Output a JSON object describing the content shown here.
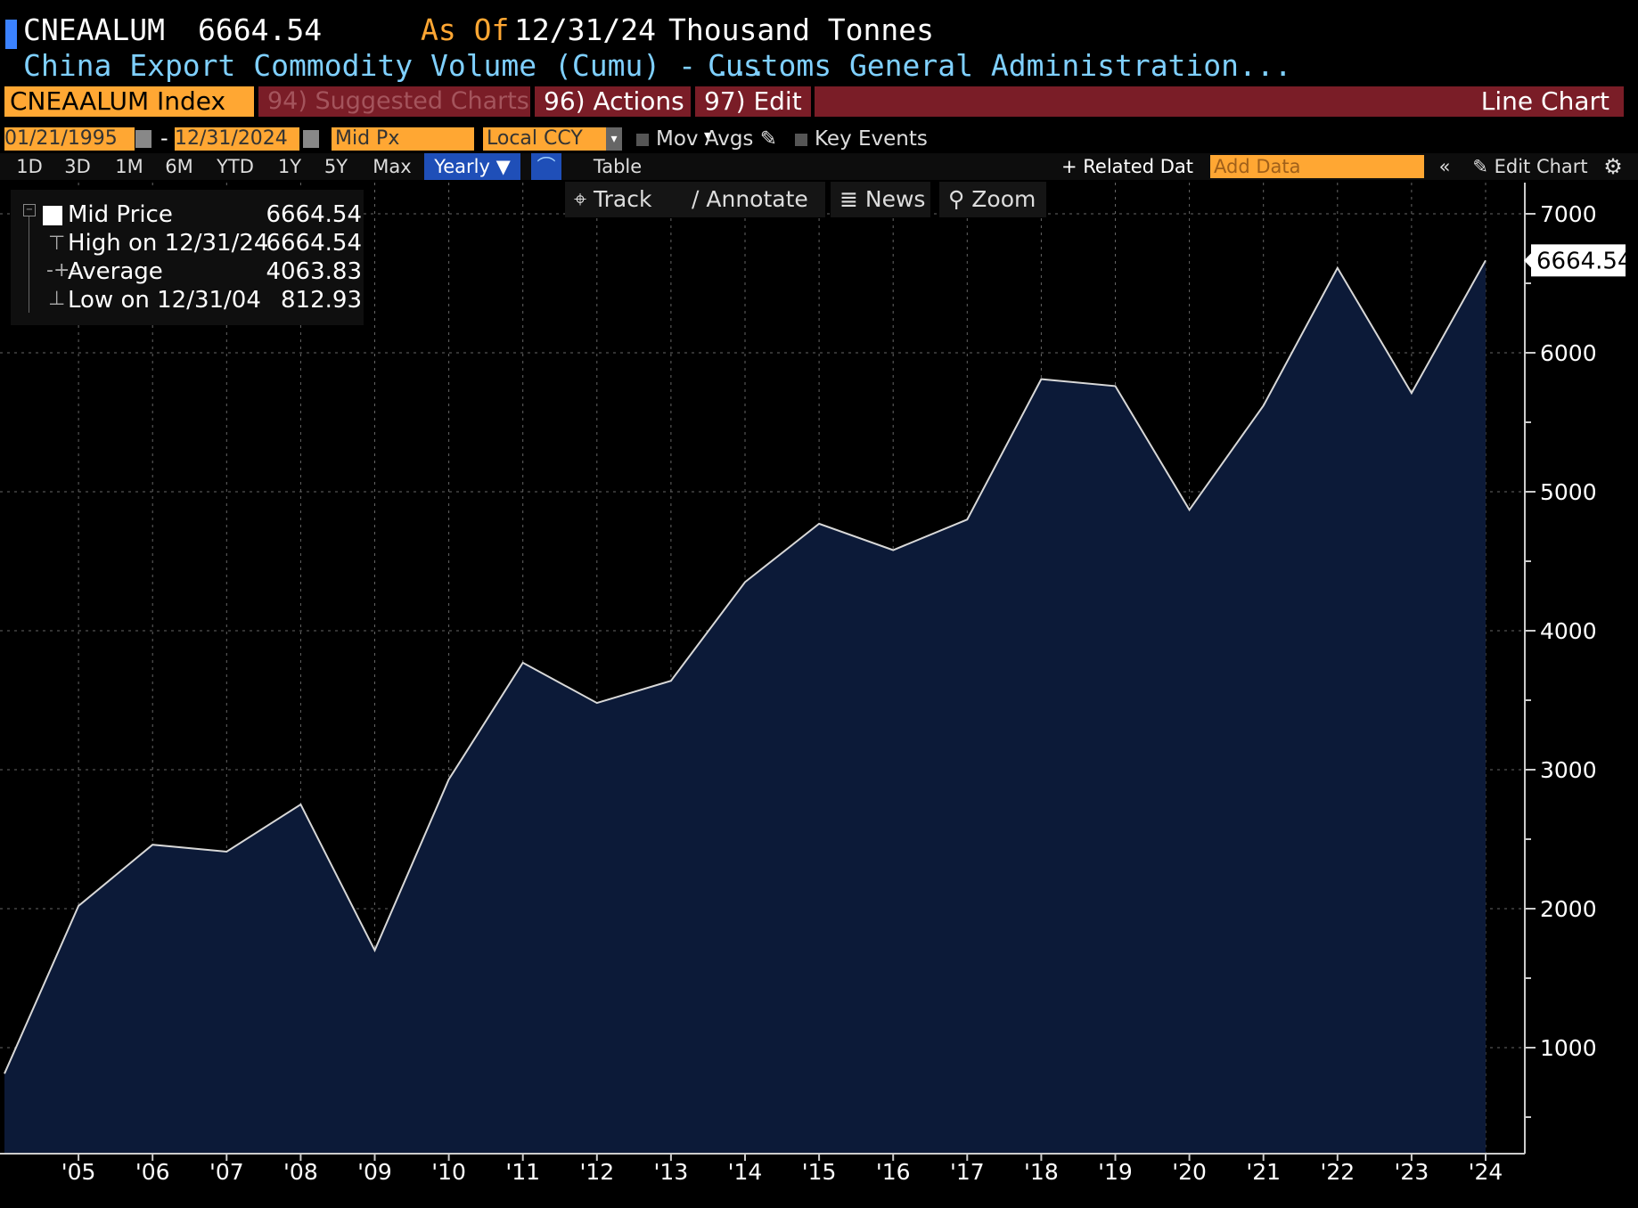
{
  "header": {
    "ticker": "CNEAALUM",
    "last_value": "6664.54",
    "as_of_label": "As Of",
    "as_of_date": "12/31/24",
    "units": "Thousand Tonnes",
    "description": "China Export Commodity Volume (Cumu) - ...",
    "source": "Customs General Administration..."
  },
  "toolbar": {
    "security": "CNEAALUM Index",
    "suggested": "94) Suggested Charts",
    "actions": "96) Actions",
    "edit": "97) Edit",
    "chart_type": "Line Chart"
  },
  "controls": {
    "start_date": "01/21/1995",
    "end_date": "12/31/2024",
    "field": "Mid Px",
    "currency": "Local CCY",
    "mov_avgs": "Mov Avgs",
    "key_events": "Key Events"
  },
  "ranges": [
    "1D",
    "3D",
    "1M",
    "6M",
    "YTD",
    "1Y",
    "5Y",
    "Max"
  ],
  "period": "Yearly",
  "table_label": "Table",
  "related_label": "+ Related Dat",
  "add_data_placeholder": "Add Data",
  "edit_chart_label": "Edit Chart",
  "tools": [
    "Track",
    "Annotate",
    "News",
    "Zoom"
  ],
  "legend": [
    {
      "label": "Mid Price",
      "value": "6664.54"
    },
    {
      "label": "High on 12/31/24",
      "value": "6664.54"
    },
    {
      "label": "Average",
      "value": "4063.83"
    },
    {
      "label": "Low on 12/31/04",
      "value": "812.93"
    }
  ],
  "colors": {
    "area_fill": "#0c1a38",
    "line": "#d8d8d8",
    "accent_amber": "#ffa733",
    "accent_maroon": "#7a1d27",
    "selected_blue": "#1f4fb8"
  },
  "chart_data": {
    "type": "area",
    "x": [
      "'04",
      "'05",
      "'06",
      "'07",
      "'08",
      "'09",
      "'10",
      "'11",
      "'12",
      "'13",
      "'14",
      "'15",
      "'16",
      "'17",
      "'18",
      "'19",
      "'20",
      "'21",
      "'22",
      "'23",
      "'24"
    ],
    "values": [
      812.93,
      2020,
      2460,
      2410,
      2750,
      1700,
      2930,
      3770,
      3480,
      3640,
      4350,
      4770,
      4580,
      4800,
      5810,
      5760,
      4870,
      5620,
      6610,
      5710,
      6664.54
    ],
    "xticks": [
      "'05",
      "'06",
      "'07",
      "'08",
      "'09",
      "'10",
      "'11",
      "'12",
      "'13",
      "'14",
      "'15",
      "'16",
      "'17",
      "'18",
      "'19",
      "'20",
      "'21",
      "'22",
      "'23",
      "'24"
    ],
    "yticks": [
      1000,
      2000,
      3000,
      4000,
      5000,
      6000,
      7000
    ],
    "ylim": [
      200,
      7150
    ],
    "last_label": "6664.54",
    "grid": true
  }
}
